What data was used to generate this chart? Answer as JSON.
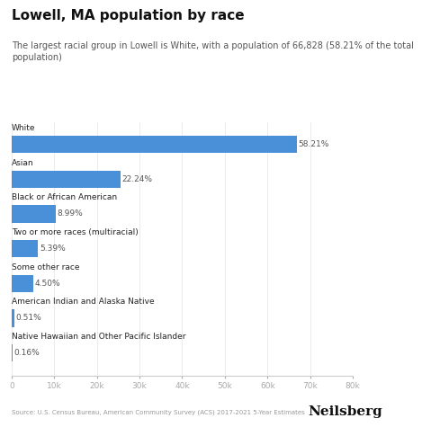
{
  "title": "Lowell, MA population by race",
  "subtitle": "The largest racial group in Lowell is White, with a population of 66,828 (58.21% of the total\npopulation)",
  "categories": [
    "White",
    "Asian",
    "Black or African American",
    "Two or more races (multiracial)",
    "Some other race",
    "American Indian and Alaska Native",
    "Native Hawaiian and Other Pacific Islander"
  ],
  "actual_values": [
    66828,
    25548,
    10325,
    6192,
    5170,
    586,
    184
  ],
  "labels": [
    "58.21%",
    "22.24%",
    "8.99%",
    "5.39%",
    "4.50%",
    "0.51%",
    "0.16%"
  ],
  "bar_color": "#4a90d9",
  "background_color": "#ffffff",
  "text_color": "#222222",
  "label_color": "#555555",
  "source_text": "Source: U.S. Census Bureau, American Community Survey (ACS) 2017-2021 5-Year Estimates",
  "brand": "Neilsberg",
  "xlim": [
    0,
    80000
  ],
  "xticks": [
    0,
    10000,
    20000,
    30000,
    40000,
    50000,
    60000,
    70000,
    80000
  ],
  "xtick_labels": [
    "0",
    "10k",
    "20k",
    "30k",
    "40k",
    "50k",
    "60k",
    "70k",
    "80k"
  ]
}
